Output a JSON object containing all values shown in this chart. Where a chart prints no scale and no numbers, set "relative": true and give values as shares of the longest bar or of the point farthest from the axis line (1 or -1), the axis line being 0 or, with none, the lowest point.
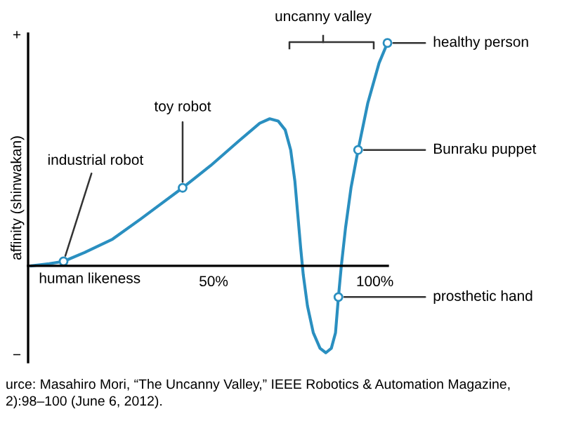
{
  "chart_data": {
    "type": "line",
    "relative": true,
    "xlabel": "human likeness",
    "ylabel": "affinity (shinwakan)",
    "xlim": [
      -7.5,
      104
    ],
    "xticks": [
      {
        "value": 50,
        "label": "50%"
      },
      {
        "value": 100,
        "label": "100%"
      }
    ],
    "x": [
      -6.5,
      -0.9,
      3.5,
      10,
      18.7,
      27.4,
      33.9,
      40.4,
      49.1,
      57.8,
      64.3,
      67.4,
      70,
      72.2,
      73.9,
      75.2,
      76.1,
      77,
      77.8,
      79.1,
      80.9,
      83,
      84.8,
      86.5,
      87.8,
      88.7,
      89.6,
      90.9,
      92.6,
      94.8,
      97.8,
      101.3,
      103.9
    ],
    "series": [
      {
        "color": "#2a8fc0",
        "values": [
          0,
          0.01,
          0.02,
          0.06,
          0.12,
          0.21,
          0.28,
          0.35,
          0.45,
          0.56,
          0.64,
          0.66,
          0.65,
          0.61,
          0.52,
          0.38,
          0.23,
          0.08,
          -0.04,
          -0.18,
          -0.3,
          -0.37,
          -0.39,
          -0.37,
          -0.3,
          -0.14,
          0,
          0.17,
          0.35,
          0.52,
          0.73,
          0.91,
          1
        ]
      }
    ],
    "marker": "none",
    "line_style": "solid",
    "annotations": [
      "+",
      "−",
      "uncanny valley",
      {
        "text": "industrial robot",
        "x": 3.5,
        "y": 0.02
      },
      {
        "text": "toy robot",
        "x": 40.4,
        "y": 0.35
      },
      {
        "text": "healthy person",
        "x": 103.9,
        "y": 1
      },
      {
        "text": "Bunraku puppet",
        "x": 94.8,
        "y": 0.52
      },
      {
        "text": "prosthetic hand",
        "x": 88.7,
        "y": -0.14
      },
      "urce: Masahiro Mori, “The Uncanny Valley,” IEEE Robotics & Automation Magazine,",
      "2):98–100 (June 6, 2012)."
    ]
  }
}
